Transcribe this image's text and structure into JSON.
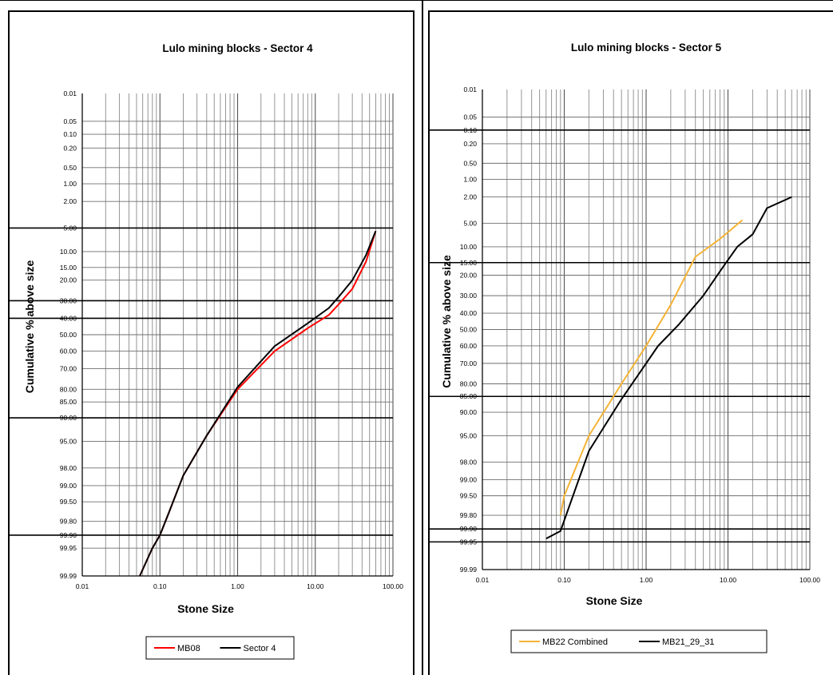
{
  "chart_data": [
    {
      "type": "line",
      "title": "Lulo mining blocks - Sector 4",
      "xlabel": "Stone Size",
      "ylabel": "Cumulative % above size",
      "x_scale": "log",
      "y_scale": "probability",
      "xlim": [
        0.01,
        100
      ],
      "ylim": [
        0.01,
        99.99
      ],
      "x_ticks": [
        "0.01",
        "0.10",
        "1.00",
        "10.00",
        "100.00"
      ],
      "y_ticks": [
        "0.01",
        "0.05",
        "0.10",
        "0.20",
        "0.50",
        "1.00",
        "2.00",
        "5.00",
        "10.00",
        "15.00",
        "20.00",
        "30.00",
        "40.00",
        "50.00",
        "60.00",
        "70.00",
        "80.00",
        "85.00",
        "90.00",
        "95.00",
        "98.00",
        "99.00",
        "99.50",
        "99.80",
        "99.90",
        "99.95",
        "99.99"
      ],
      "highlight_lines": [
        "5.00",
        "30.00",
        "40.00",
        "90.00",
        "99.90"
      ],
      "legend_position": "bottom",
      "series": [
        {
          "name": "MB08",
          "color": "#ff0000",
          "x": [
            0.055,
            0.08,
            0.1,
            0.13,
            0.2,
            0.4,
            1,
            3,
            8,
            15,
            20,
            30,
            45,
            60
          ],
          "y": [
            99.99,
            99.95,
            99.9,
            99.7,
            98.5,
            94,
            80,
            60,
            46,
            38,
            32,
            24,
            13,
            5.5
          ]
        },
        {
          "name": "Sector 4",
          "color": "#000000",
          "x": [
            0.055,
            0.08,
            0.1,
            0.13,
            0.2,
            0.4,
            1,
            3,
            8,
            15,
            20,
            30,
            45,
            60
          ],
          "y": [
            99.99,
            99.95,
            99.9,
            99.7,
            98.5,
            94,
            79,
            57,
            43,
            34,
            28,
            20,
            11,
            5.5
          ]
        }
      ]
    },
    {
      "type": "line",
      "title": "Lulo mining blocks - Sector 5",
      "xlabel": "Stone Size",
      "ylabel": "Cumulative % above size",
      "x_scale": "log",
      "y_scale": "probability",
      "xlim": [
        0.01,
        100
      ],
      "ylim": [
        0.01,
        99.99
      ],
      "x_ticks": [
        "0.01",
        "0.10",
        "1.00",
        "10.00",
        "100.00"
      ],
      "y_ticks": [
        "0.01",
        "0.05",
        "0.10",
        "0.20",
        "0.50",
        "1.00",
        "2.00",
        "5.00",
        "10.00",
        "15.00",
        "20.00",
        "30.00",
        "40.00",
        "50.00",
        "60.00",
        "70.00",
        "80.00",
        "85.00",
        "90.00",
        "95.00",
        "98.00",
        "99.00",
        "99.50",
        "99.80",
        "99.90",
        "99.95",
        "99.99"
      ],
      "highlight_lines": [
        "0.10",
        "15.00",
        "85.00",
        "99.90",
        "99.95"
      ],
      "legend_position": "bottom",
      "series": [
        {
          "name": "MB22 Combined",
          "color": "#f5b335",
          "x": [
            0.09,
            0.1,
            0.2,
            0.5,
            1,
            2,
            4,
            8,
            15
          ],
          "y": [
            99.8,
            99.5,
            95,
            80,
            60,
            35,
            13,
            8,
            4.5
          ]
        },
        {
          "name": "MB21_29_31",
          "color": "#000000",
          "x": [
            0.06,
            0.09,
            0.2,
            0.5,
            1,
            1.4,
            2.5,
            5,
            9,
            13,
            20,
            30,
            60
          ],
          "y": [
            99.94,
            99.91,
            97,
            86,
            70,
            60,
            47,
            30,
            16,
            10,
            7,
            3,
            2
          ]
        }
      ]
    }
  ]
}
